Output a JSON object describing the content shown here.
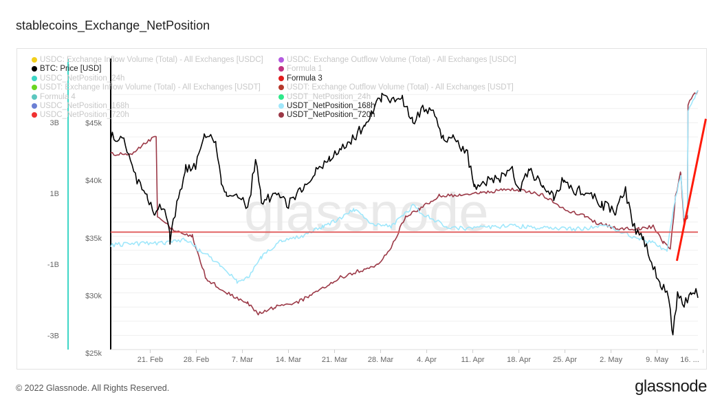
{
  "title": "stablecoins_Exchange_NetPosition",
  "footer": "© 2022 Glassnode. All Rights Reserved.",
  "logo": "glassnode",
  "watermark": "glassnode",
  "legend": [
    {
      "label": "USDC: Exchange Inflow Volume (Total) - All Exchanges [USDC]",
      "color": "#f2cf1c",
      "active": false
    },
    {
      "label": "USDC: Exchange Outflow Volume (Total) - All Exchanges [USDC]",
      "color": "#b45be0",
      "active": false
    },
    {
      "label": "BTC: Price [USD]",
      "color": "#000000",
      "active": true
    },
    {
      "label": "Formula 1",
      "color": "#c0317f",
      "active": false
    },
    {
      "label": "USDC_NetPosition_24h",
      "color": "#3dd6c6",
      "active": false
    },
    {
      "label": "Formula 3",
      "color": "#e01b1b",
      "active": true
    },
    {
      "label": "USDT: Exchange Inflow Volume (Total) - All Exchanges [USDT]",
      "color": "#6ad620",
      "active": false
    },
    {
      "label": "USDT: Exchange Outflow Volume (Total) - All Exchanges [USDT]",
      "color": "#b5392c",
      "active": false
    },
    {
      "label": "Formula 4",
      "color": "#5cc7bf",
      "active": false
    },
    {
      "label": "USDT_NetPosition_24h",
      "color": "#2ee88a",
      "active": false
    },
    {
      "label": "USDC_NetPosition_168h",
      "color": "#6b7fd4",
      "active": false
    },
    {
      "label": "USDT_NetPosition_168h",
      "color": "#9fe7fb",
      "active": true
    },
    {
      "label": "USDC_NetPosition_720h",
      "color": "#f03232",
      "active": false
    },
    {
      "label": "USDT_NetPosition_720h",
      "color": "#9b3846",
      "active": true
    }
  ],
  "chart_data": {
    "type": "line",
    "title": "stablecoins_Exchange_NetPosition",
    "x_unit": "days since 15 Feb 2022",
    "xlim": [
      0,
      89.2
    ],
    "x_ticks": [
      {
        "day": 6,
        "label": "21. Feb"
      },
      {
        "day": 13,
        "label": "28. Feb"
      },
      {
        "day": 20,
        "label": "7. Mar"
      },
      {
        "day": 27,
        "label": "14. Mar"
      },
      {
        "day": 34,
        "label": "21. Mar"
      },
      {
        "day": 41,
        "label": "28. Mar"
      },
      {
        "day": 48,
        "label": "4. Apr"
      },
      {
        "day": 55,
        "label": "11. Apr"
      },
      {
        "day": 62,
        "label": "18. Apr"
      },
      {
        "day": 69,
        "label": "25. Apr"
      },
      {
        "day": 76,
        "label": "2. May"
      },
      {
        "day": 83,
        "label": "9. May"
      },
      {
        "day": 90,
        "label": "16. ..."
      }
    ],
    "left_axis": {
      "unit": "USD",
      "ylim": [
        -3.4,
        4.8
      ],
      "ticks": [
        {
          "v": 3,
          "label": "3B"
        },
        {
          "v": 1,
          "label": "1B"
        },
        {
          "v": -1,
          "label": "-1B"
        },
        {
          "v": -3,
          "label": "-3B"
        }
      ]
    },
    "price_axis": {
      "unit": "USD (k)",
      "ylim": [
        25.3,
        50.6
      ],
      "ticks": [
        {
          "v": 45,
          "label": "$45k"
        },
        {
          "v": 40,
          "label": "$40k"
        },
        {
          "v": 35,
          "label": "$35k"
        },
        {
          "v": 30,
          "label": "$30k"
        },
        {
          "v": 25,
          "label": "$25k"
        }
      ]
    },
    "series": [
      {
        "name": "BTC: Price [USD]",
        "axis": "price",
        "color": "#000000",
        "points": [
          [
            0,
            44
          ],
          [
            2,
            43.4
          ],
          [
            4,
            40
          ],
          [
            5.6,
            38.5
          ],
          [
            6.7,
            37.3
          ],
          [
            8.2,
            37.9
          ],
          [
            9,
            34.9
          ],
          [
            9.8,
            37.3
          ],
          [
            11.4,
            41
          ],
          [
            12.9,
            41.2
          ],
          [
            14.2,
            44.3
          ],
          [
            16,
            43.4
          ],
          [
            16.8,
            39.7
          ],
          [
            17.6,
            38.8
          ],
          [
            20.3,
            38.5
          ],
          [
            20.8,
            37.3
          ],
          [
            22,
            41.8
          ],
          [
            22.9,
            38.2
          ],
          [
            25,
            38.8
          ],
          [
            27,
            37.9
          ],
          [
            29,
            39.1
          ],
          [
            31.2,
            41
          ],
          [
            33.3,
            41.8
          ],
          [
            35,
            42.8
          ],
          [
            36.5,
            43.4
          ],
          [
            38.6,
            44.9
          ],
          [
            41.2,
            47.3
          ],
          [
            42.7,
            47
          ],
          [
            44.3,
            47
          ],
          [
            45.9,
            45.2
          ],
          [
            47.4,
            46.1
          ],
          [
            49,
            45.8
          ],
          [
            50.6,
            43.4
          ],
          [
            52,
            43.7
          ],
          [
            54.2,
            42.2
          ],
          [
            55.3,
            39.4
          ],
          [
            57.4,
            40
          ],
          [
            59.5,
            40.3
          ],
          [
            61,
            40.9
          ],
          [
            62,
            39.1
          ],
          [
            63.6,
            40.9
          ],
          [
            65.7,
            39.4
          ],
          [
            67.3,
            38.5
          ],
          [
            68.9,
            40.3
          ],
          [
            70.4,
            39.1
          ],
          [
            72.5,
            39.1
          ],
          [
            74.6,
            37.9
          ],
          [
            76.7,
            37.3
          ],
          [
            78.2,
            39.1
          ],
          [
            79.3,
            36.1
          ],
          [
            80.9,
            34.9
          ],
          [
            82.4,
            32.5
          ],
          [
            83.5,
            31
          ],
          [
            84.5,
            30.6
          ],
          [
            85.4,
            26.7
          ],
          [
            86.1,
            30
          ],
          [
            87.1,
            29.4
          ],
          [
            88.2,
            30
          ],
          [
            88.9,
            30.6
          ],
          [
            89.2,
            29.8
          ]
        ]
      },
      {
        "name": "USDT_NetPosition_720h",
        "axis": "left",
        "color": "#9b3846",
        "points": [
          [
            0,
            2.1
          ],
          [
            3,
            2.1
          ],
          [
            6,
            2.5
          ],
          [
            6.9,
            2.6
          ],
          [
            7.1,
            0.36
          ],
          [
            9.3,
            0
          ],
          [
            12.4,
            -0.2
          ],
          [
            14.5,
            -1.4
          ],
          [
            17.7,
            -1.8
          ],
          [
            20.8,
            -2.1
          ],
          [
            22.4,
            -2.4
          ],
          [
            25,
            -2.2
          ],
          [
            28,
            -2.1
          ],
          [
            31.2,
            -1.8
          ],
          [
            34.4,
            -1.4
          ],
          [
            37.5,
            -1.2
          ],
          [
            40.6,
            -1.0
          ],
          [
            42.7,
            -0.5
          ],
          [
            44.8,
            0.36
          ],
          [
            46.9,
            0.55
          ],
          [
            50,
            0.94
          ],
          [
            53.2,
            0.94
          ],
          [
            56.3,
            1.0
          ],
          [
            59.5,
            1.1
          ],
          [
            62.6,
            1.1
          ],
          [
            65.7,
            0.94
          ],
          [
            68.9,
            0.55
          ],
          [
            72,
            0.36
          ],
          [
            74,
            0.16
          ],
          [
            77.2,
            0
          ],
          [
            80.3,
            0
          ],
          [
            82.4,
            0.07
          ],
          [
            84,
            -0.4
          ],
          [
            85,
            -0.6
          ],
          [
            85.8,
            0.9
          ],
          [
            86.6,
            1.6
          ],
          [
            87.1,
            0.16
          ],
          [
            87.6,
            0.3
          ],
          [
            87.7,
            3.5
          ],
          [
            88.7,
            3.8
          ],
          [
            89.2,
            3.9
          ]
        ]
      },
      {
        "name": "USDT_NetPosition_168h",
        "axis": "left",
        "color": "#9fe7fb",
        "points": [
          [
            0,
            -0.45
          ],
          [
            4,
            -0.42
          ],
          [
            8.3,
            -0.4
          ],
          [
            11.4,
            -0.3
          ],
          [
            13.5,
            -0.6
          ],
          [
            16.6,
            -1.0
          ],
          [
            19.2,
            -1.5
          ],
          [
            20.8,
            -1.4
          ],
          [
            22.9,
            -0.8
          ],
          [
            26,
            -0.3
          ],
          [
            29.2,
            -0.2
          ],
          [
            32.3,
            0.07
          ],
          [
            35.4,
            0.36
          ],
          [
            37,
            0.55
          ],
          [
            39.6,
            0.16
          ],
          [
            42.7,
            0.07
          ],
          [
            45.9,
            0.65
          ],
          [
            48,
            0.36
          ],
          [
            51.1,
            0.07
          ],
          [
            54.2,
            0
          ],
          [
            58.4,
            0.07
          ],
          [
            62.6,
            0.07
          ],
          [
            66.8,
            0
          ],
          [
            71,
            0
          ],
          [
            75.1,
            0.07
          ],
          [
            78.2,
            -0.13
          ],
          [
            80.3,
            -0.3
          ],
          [
            82.4,
            -0.4
          ],
          [
            84.5,
            -0.6
          ],
          [
            85.8,
            0.9
          ],
          [
            86.6,
            1.5
          ],
          [
            87.1,
            0.36
          ],
          [
            87.6,
            0.4
          ],
          [
            87.7,
            3.3
          ],
          [
            89.2,
            3.9
          ]
        ]
      },
      {
        "name": "Formula 3",
        "axis": "left",
        "color": "#e05a5a",
        "points": [
          [
            0,
            -0.09
          ],
          [
            89.2,
            -0.09
          ]
        ]
      },
      {
        "name": "Formula 3 (rising)",
        "axis": "left",
        "color": "#ff1a0a",
        "points": [
          [
            86,
            -0.9
          ],
          [
            90.4,
            3.1
          ]
        ]
      }
    ]
  }
}
